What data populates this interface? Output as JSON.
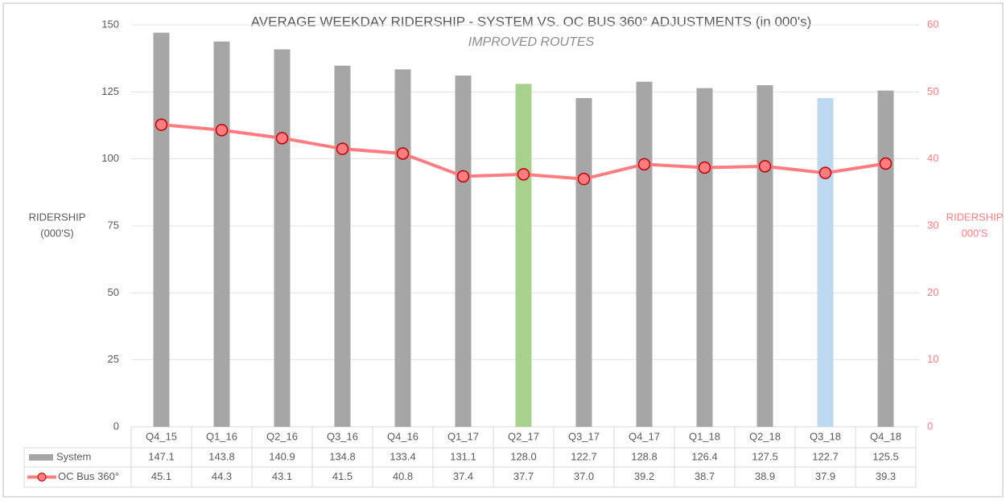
{
  "chart_data": {
    "type": "bar_line",
    "title": "AVERAGE WEEKDAY RIDERSHIP - SYSTEM VS. OC BUS 360° ADJUSTMENTS (in 000's)",
    "subtitle": "IMPROVED ROUTES",
    "y_label": [
      "RIDERSHIP",
      "(000'S)"
    ],
    "y2_label": [
      "RIDERSHIP",
      "000'S"
    ],
    "categories": [
      "Q4_15",
      "Q1_16",
      "Q2_16",
      "Q3_16",
      "Q4_16",
      "Q1_17",
      "Q2_17",
      "Q3_17",
      "Q4_17",
      "Q1_18",
      "Q2_18",
      "Q3_18",
      "Q4_18"
    ],
    "series": [
      {
        "name": "System",
        "type": "bar",
        "color": "#a6a6a6",
        "colors": [
          "#a6a6a6",
          "#a6a6a6",
          "#a6a6a6",
          "#a6a6a6",
          "#a6a6a6",
          "#a6a6a6",
          "#a9d18e",
          "#a6a6a6",
          "#a6a6a6",
          "#a6a6a6",
          "#a6a6a6",
          "#bdd7ee",
          "#a6a6a6"
        ],
        "values": [
          147.1,
          143.8,
          140.9,
          134.8,
          133.4,
          131.1,
          128.0,
          122.7,
          128.8,
          126.4,
          127.5,
          122.7,
          125.5
        ],
        "value_labels": [
          "147.1",
          "143.8",
          "140.9",
          "134.8",
          "133.4",
          "131.1",
          "128.0",
          "122.7",
          "128.8",
          "126.4",
          "127.5",
          "122.7",
          "125.5"
        ]
      },
      {
        "name": "OC Bus 360°",
        "type": "line",
        "axis": "y2",
        "color": "#ff7c80",
        "marker_edge": "#c00000",
        "values": [
          45.1,
          44.3,
          43.1,
          41.5,
          40.8,
          37.4,
          37.7,
          37.0,
          39.2,
          38.7,
          38.9,
          37.9,
          39.3
        ],
        "value_labels": [
          "45.1",
          "44.3",
          "43.1",
          "41.5",
          "40.8",
          "37.4",
          "37.7",
          "37.0",
          "39.2",
          "38.7",
          "38.9",
          "37.9",
          "39.3"
        ]
      }
    ],
    "ylim": [
      0,
      150
    ],
    "yticks": [
      0,
      25,
      50,
      75,
      100,
      125,
      150
    ],
    "y2lim": [
      0,
      60
    ],
    "y2ticks": [
      0,
      10,
      20,
      30,
      40,
      50,
      60
    ],
    "grid": true
  }
}
